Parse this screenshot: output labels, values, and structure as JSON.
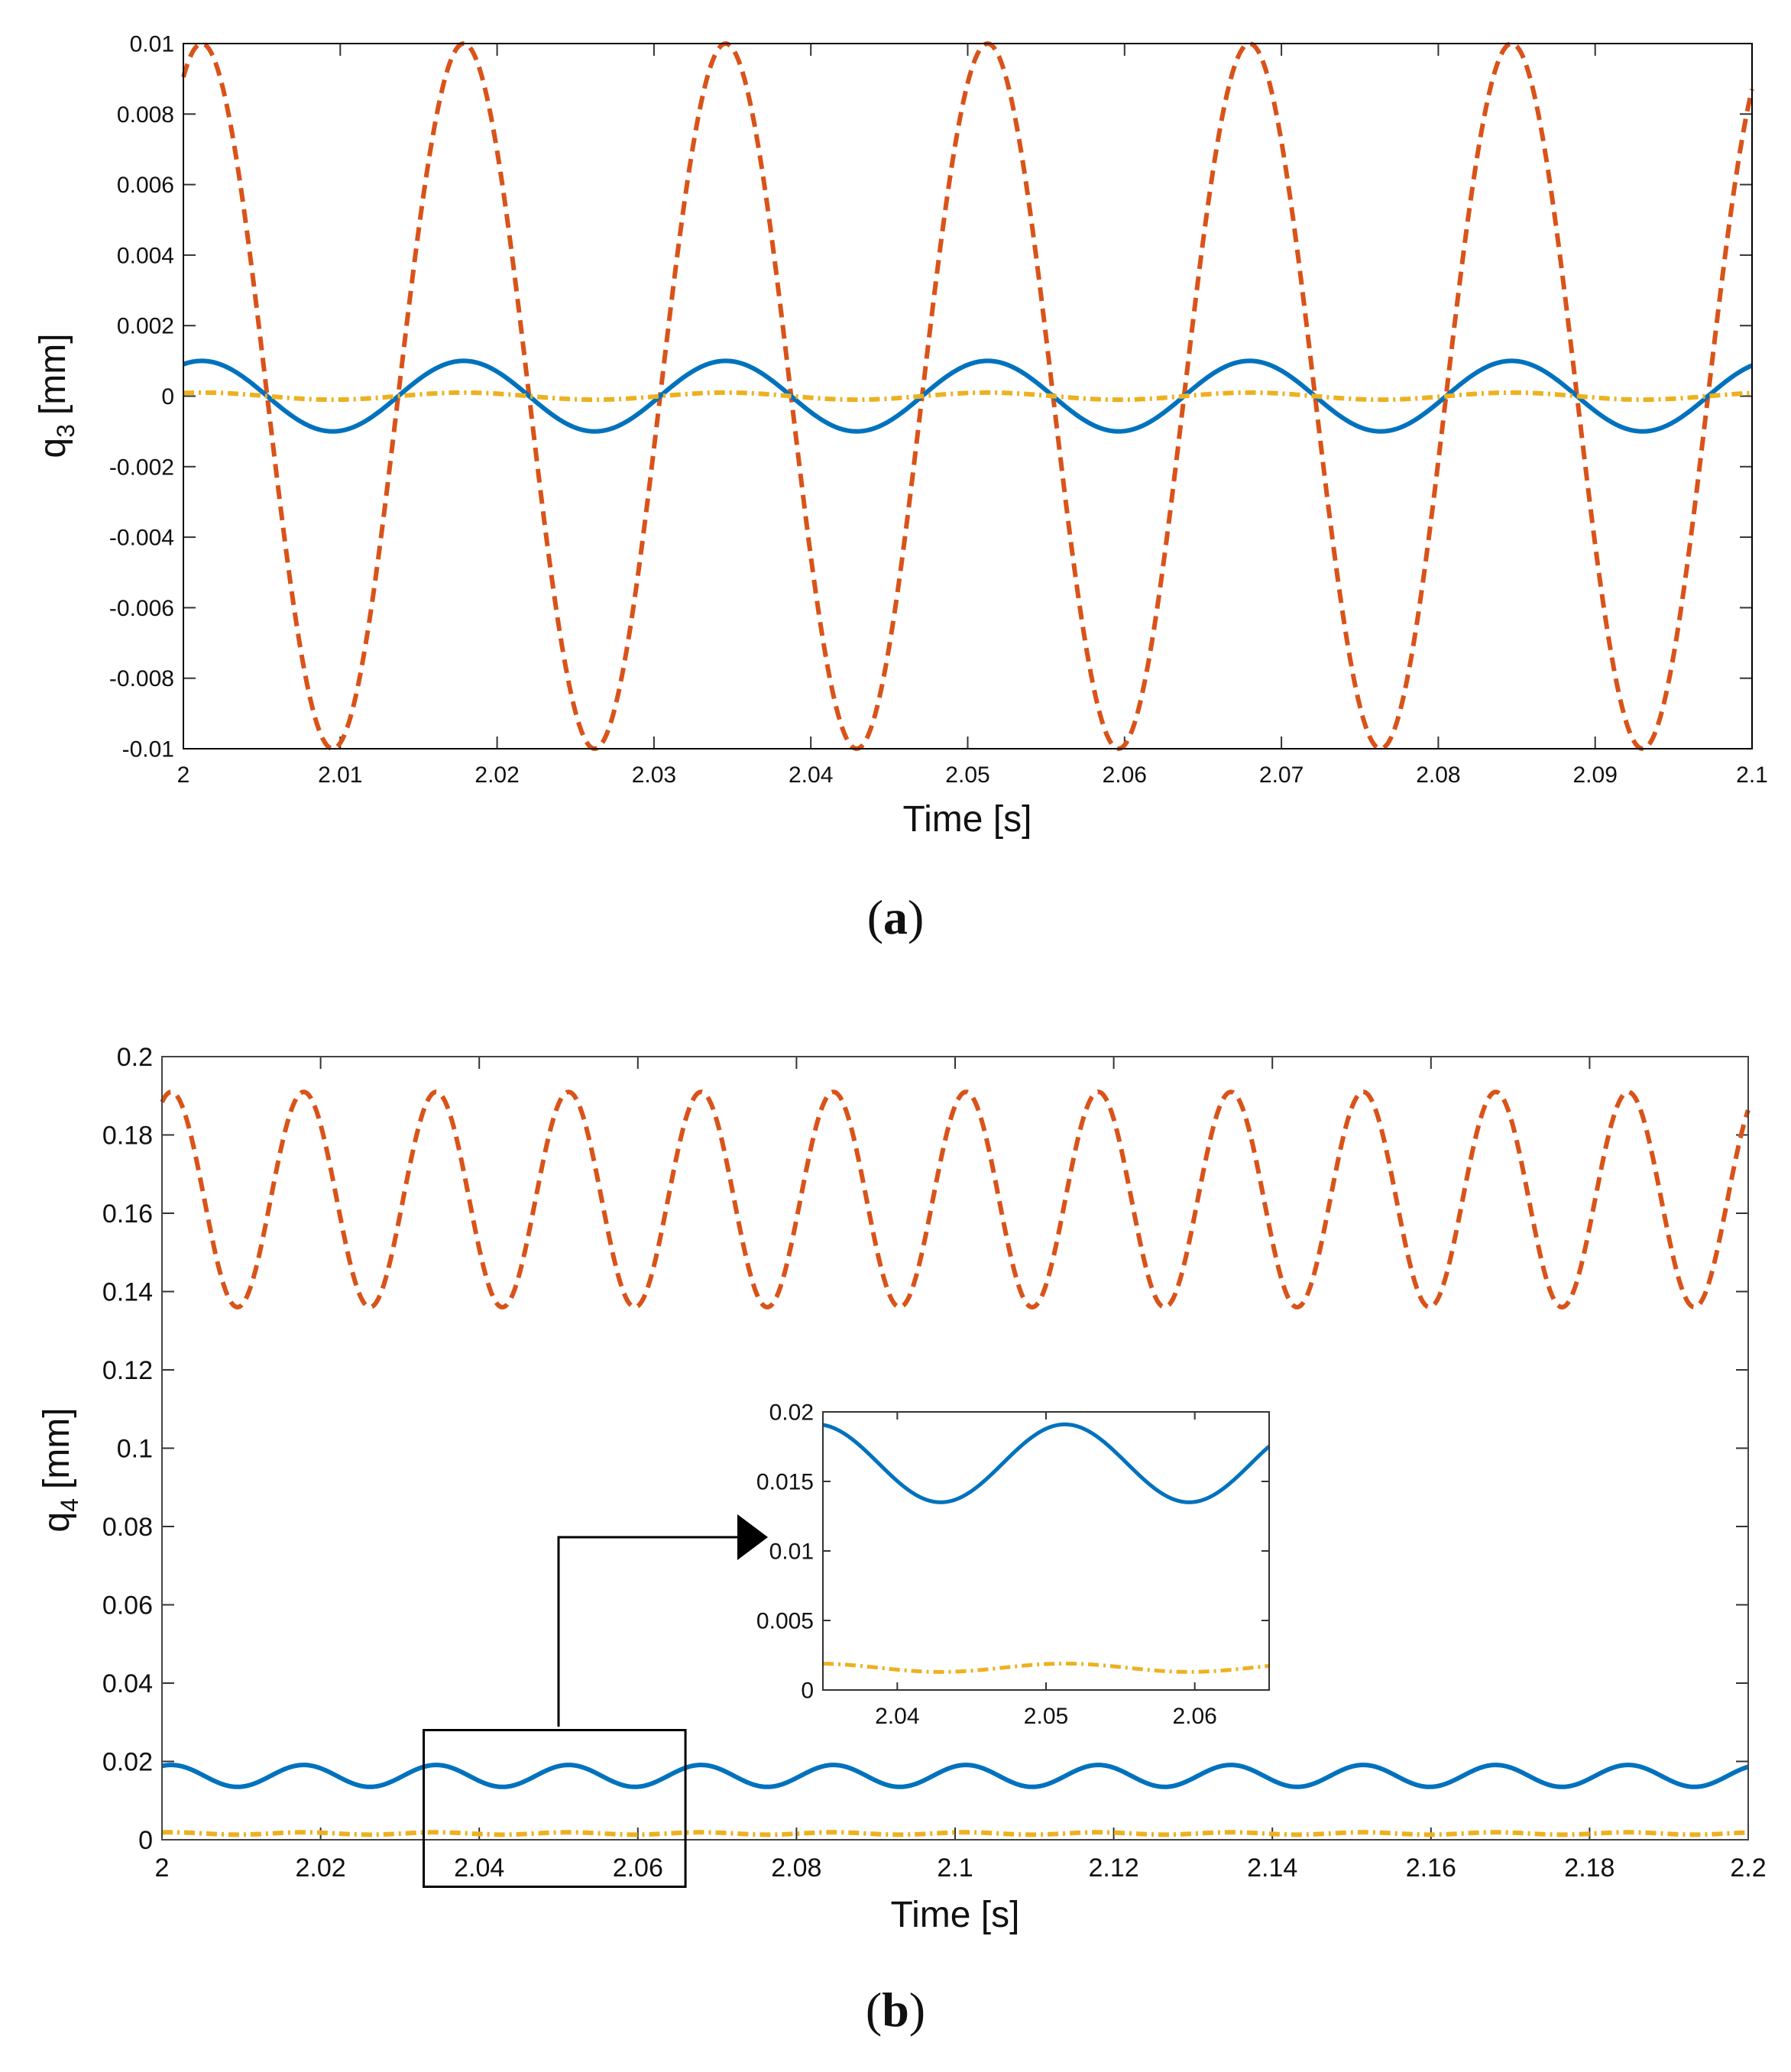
{
  "chart_data": [
    {
      "id": "a",
      "type": "line",
      "panel_label": "(a)",
      "panel_letter": "a",
      "xlabel": "Time [s]",
      "ylabel_base": "q",
      "ylabel_sub": "3",
      "ylabel_unit": "[mm]",
      "xlim": [
        2,
        2.1
      ],
      "ylim": [
        -0.01,
        0.01
      ],
      "xticks": [
        "2",
        "2.01",
        "2.02",
        "2.03",
        "2.04",
        "2.05",
        "2.06",
        "2.07",
        "2.08",
        "2.09",
        "2.1"
      ],
      "yticks": [
        "-0.01",
        "-0.008",
        "-0.006",
        "-0.004",
        "-0.002",
        "0",
        "0.002",
        "0.004",
        "0.006",
        "0.008",
        "0.01"
      ],
      "series": [
        {
          "name": "dashed-orange",
          "color": "#D95319",
          "style": "dashed",
          "offset": 0,
          "amplitude": 0.01,
          "period": 0.0167,
          "phase": 0.18
        },
        {
          "name": "solid-blue",
          "color": "#0072BD",
          "style": "solid",
          "offset": 0,
          "amplitude": 0.001,
          "period": 0.0167,
          "phase": 0.18
        },
        {
          "name": "dashdot-yellow",
          "color": "#EDB120",
          "style": "dashdot",
          "offset": 0,
          "amplitude": 0.0001,
          "period": 0.0167,
          "phase": 0.18
        }
      ]
    },
    {
      "id": "b",
      "type": "line",
      "panel_label": "(b)",
      "panel_letter": "b",
      "xlabel": "Time [s]",
      "ylabel_base": "q",
      "ylabel_sub": "4",
      "ylabel_unit": "[mm]",
      "xlim": [
        2,
        2.2
      ],
      "ylim": [
        0,
        0.2
      ],
      "xticks": [
        "2",
        "2.02",
        "2.04",
        "2.06",
        "2.08",
        "2.1",
        "2.12",
        "2.14",
        "2.16",
        "2.18",
        "2.2"
      ],
      "yticks": [
        "0",
        "0.02",
        "0.04",
        "0.06",
        "0.08",
        "0.1",
        "0.12",
        "0.14",
        "0.16",
        "0.18",
        "0.2"
      ],
      "series": [
        {
          "name": "dashed-orange",
          "color": "#D95319",
          "style": "dashed",
          "offset": 0.1635,
          "amplitude": 0.0275,
          "period": 0.0167,
          "phase": 0.18
        },
        {
          "name": "solid-blue",
          "color": "#0072BD",
          "style": "solid",
          "offset": 0.0163,
          "amplitude": 0.0028,
          "period": 0.0167,
          "phase": 0.18
        },
        {
          "name": "dashdot-yellow",
          "color": "#EDB120",
          "style": "dashdot",
          "offset": 0.0016,
          "amplitude": 0.0003,
          "period": 0.0167,
          "phase": 0.18
        }
      ],
      "zoom_box": {
        "xlim": [
          2.033,
          2.066
        ],
        "ylim": [
          -0.012,
          0.028
        ]
      },
      "inset": {
        "xlim": [
          2.035,
          2.065
        ],
        "ylim": [
          0,
          0.02
        ],
        "xticks": [
          "2.04",
          "2.05",
          "2.06"
        ],
        "yticks": [
          "0",
          "0.005",
          "0.01",
          "0.015",
          "0.02"
        ]
      }
    }
  ]
}
